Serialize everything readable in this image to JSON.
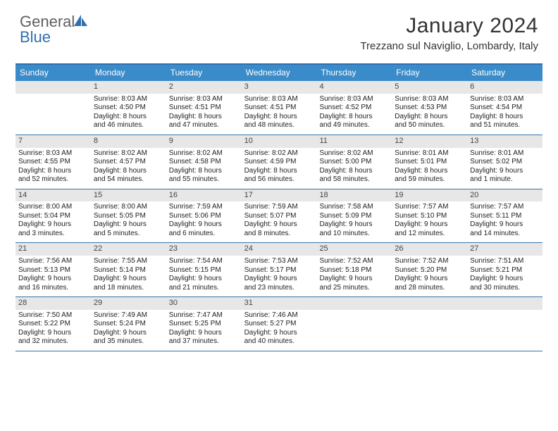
{
  "logo": {
    "word1": "General",
    "word2": "Blue"
  },
  "title": "January 2024",
  "location": "Trezzano sul Naviglio, Lombardy, Italy",
  "colors": {
    "header_bar": "#3a8bc9",
    "rule": "#3874a8",
    "daynum_bg": "#e7e7e7",
    "brand_blue": "#2f6fb0"
  },
  "days_of_week": [
    "Sunday",
    "Monday",
    "Tuesday",
    "Wednesday",
    "Thursday",
    "Friday",
    "Saturday"
  ],
  "weeks": [
    [
      {
        "n": "",
        "lines": []
      },
      {
        "n": "1",
        "lines": [
          "Sunrise: 8:03 AM",
          "Sunset: 4:50 PM",
          "Daylight: 8 hours",
          "and 46 minutes."
        ]
      },
      {
        "n": "2",
        "lines": [
          "Sunrise: 8:03 AM",
          "Sunset: 4:51 PM",
          "Daylight: 8 hours",
          "and 47 minutes."
        ]
      },
      {
        "n": "3",
        "lines": [
          "Sunrise: 8:03 AM",
          "Sunset: 4:51 PM",
          "Daylight: 8 hours",
          "and 48 minutes."
        ]
      },
      {
        "n": "4",
        "lines": [
          "Sunrise: 8:03 AM",
          "Sunset: 4:52 PM",
          "Daylight: 8 hours",
          "and 49 minutes."
        ]
      },
      {
        "n": "5",
        "lines": [
          "Sunrise: 8:03 AM",
          "Sunset: 4:53 PM",
          "Daylight: 8 hours",
          "and 50 minutes."
        ]
      },
      {
        "n": "6",
        "lines": [
          "Sunrise: 8:03 AM",
          "Sunset: 4:54 PM",
          "Daylight: 8 hours",
          "and 51 minutes."
        ]
      }
    ],
    [
      {
        "n": "7",
        "lines": [
          "Sunrise: 8:03 AM",
          "Sunset: 4:55 PM",
          "Daylight: 8 hours",
          "and 52 minutes."
        ]
      },
      {
        "n": "8",
        "lines": [
          "Sunrise: 8:02 AM",
          "Sunset: 4:57 PM",
          "Daylight: 8 hours",
          "and 54 minutes."
        ]
      },
      {
        "n": "9",
        "lines": [
          "Sunrise: 8:02 AM",
          "Sunset: 4:58 PM",
          "Daylight: 8 hours",
          "and 55 minutes."
        ]
      },
      {
        "n": "10",
        "lines": [
          "Sunrise: 8:02 AM",
          "Sunset: 4:59 PM",
          "Daylight: 8 hours",
          "and 56 minutes."
        ]
      },
      {
        "n": "11",
        "lines": [
          "Sunrise: 8:02 AM",
          "Sunset: 5:00 PM",
          "Daylight: 8 hours",
          "and 58 minutes."
        ]
      },
      {
        "n": "12",
        "lines": [
          "Sunrise: 8:01 AM",
          "Sunset: 5:01 PM",
          "Daylight: 8 hours",
          "and 59 minutes."
        ]
      },
      {
        "n": "13",
        "lines": [
          "Sunrise: 8:01 AM",
          "Sunset: 5:02 PM",
          "Daylight: 9 hours",
          "and 1 minute."
        ]
      }
    ],
    [
      {
        "n": "14",
        "lines": [
          "Sunrise: 8:00 AM",
          "Sunset: 5:04 PM",
          "Daylight: 9 hours",
          "and 3 minutes."
        ]
      },
      {
        "n": "15",
        "lines": [
          "Sunrise: 8:00 AM",
          "Sunset: 5:05 PM",
          "Daylight: 9 hours",
          "and 5 minutes."
        ]
      },
      {
        "n": "16",
        "lines": [
          "Sunrise: 7:59 AM",
          "Sunset: 5:06 PM",
          "Daylight: 9 hours",
          "and 6 minutes."
        ]
      },
      {
        "n": "17",
        "lines": [
          "Sunrise: 7:59 AM",
          "Sunset: 5:07 PM",
          "Daylight: 9 hours",
          "and 8 minutes."
        ]
      },
      {
        "n": "18",
        "lines": [
          "Sunrise: 7:58 AM",
          "Sunset: 5:09 PM",
          "Daylight: 9 hours",
          "and 10 minutes."
        ]
      },
      {
        "n": "19",
        "lines": [
          "Sunrise: 7:57 AM",
          "Sunset: 5:10 PM",
          "Daylight: 9 hours",
          "and 12 minutes."
        ]
      },
      {
        "n": "20",
        "lines": [
          "Sunrise: 7:57 AM",
          "Sunset: 5:11 PM",
          "Daylight: 9 hours",
          "and 14 minutes."
        ]
      }
    ],
    [
      {
        "n": "21",
        "lines": [
          "Sunrise: 7:56 AM",
          "Sunset: 5:13 PM",
          "Daylight: 9 hours",
          "and 16 minutes."
        ]
      },
      {
        "n": "22",
        "lines": [
          "Sunrise: 7:55 AM",
          "Sunset: 5:14 PM",
          "Daylight: 9 hours",
          "and 18 minutes."
        ]
      },
      {
        "n": "23",
        "lines": [
          "Sunrise: 7:54 AM",
          "Sunset: 5:15 PM",
          "Daylight: 9 hours",
          "and 21 minutes."
        ]
      },
      {
        "n": "24",
        "lines": [
          "Sunrise: 7:53 AM",
          "Sunset: 5:17 PM",
          "Daylight: 9 hours",
          "and 23 minutes."
        ]
      },
      {
        "n": "25",
        "lines": [
          "Sunrise: 7:52 AM",
          "Sunset: 5:18 PM",
          "Daylight: 9 hours",
          "and 25 minutes."
        ]
      },
      {
        "n": "26",
        "lines": [
          "Sunrise: 7:52 AM",
          "Sunset: 5:20 PM",
          "Daylight: 9 hours",
          "and 28 minutes."
        ]
      },
      {
        "n": "27",
        "lines": [
          "Sunrise: 7:51 AM",
          "Sunset: 5:21 PM",
          "Daylight: 9 hours",
          "and 30 minutes."
        ]
      }
    ],
    [
      {
        "n": "28",
        "lines": [
          "Sunrise: 7:50 AM",
          "Sunset: 5:22 PM",
          "Daylight: 9 hours",
          "and 32 minutes."
        ]
      },
      {
        "n": "29",
        "lines": [
          "Sunrise: 7:49 AM",
          "Sunset: 5:24 PM",
          "Daylight: 9 hours",
          "and 35 minutes."
        ]
      },
      {
        "n": "30",
        "lines": [
          "Sunrise: 7:47 AM",
          "Sunset: 5:25 PM",
          "Daylight: 9 hours",
          "and 37 minutes."
        ]
      },
      {
        "n": "31",
        "lines": [
          "Sunrise: 7:46 AM",
          "Sunset: 5:27 PM",
          "Daylight: 9 hours",
          "and 40 minutes."
        ]
      },
      {
        "n": "",
        "lines": []
      },
      {
        "n": "",
        "lines": []
      },
      {
        "n": "",
        "lines": []
      }
    ]
  ]
}
